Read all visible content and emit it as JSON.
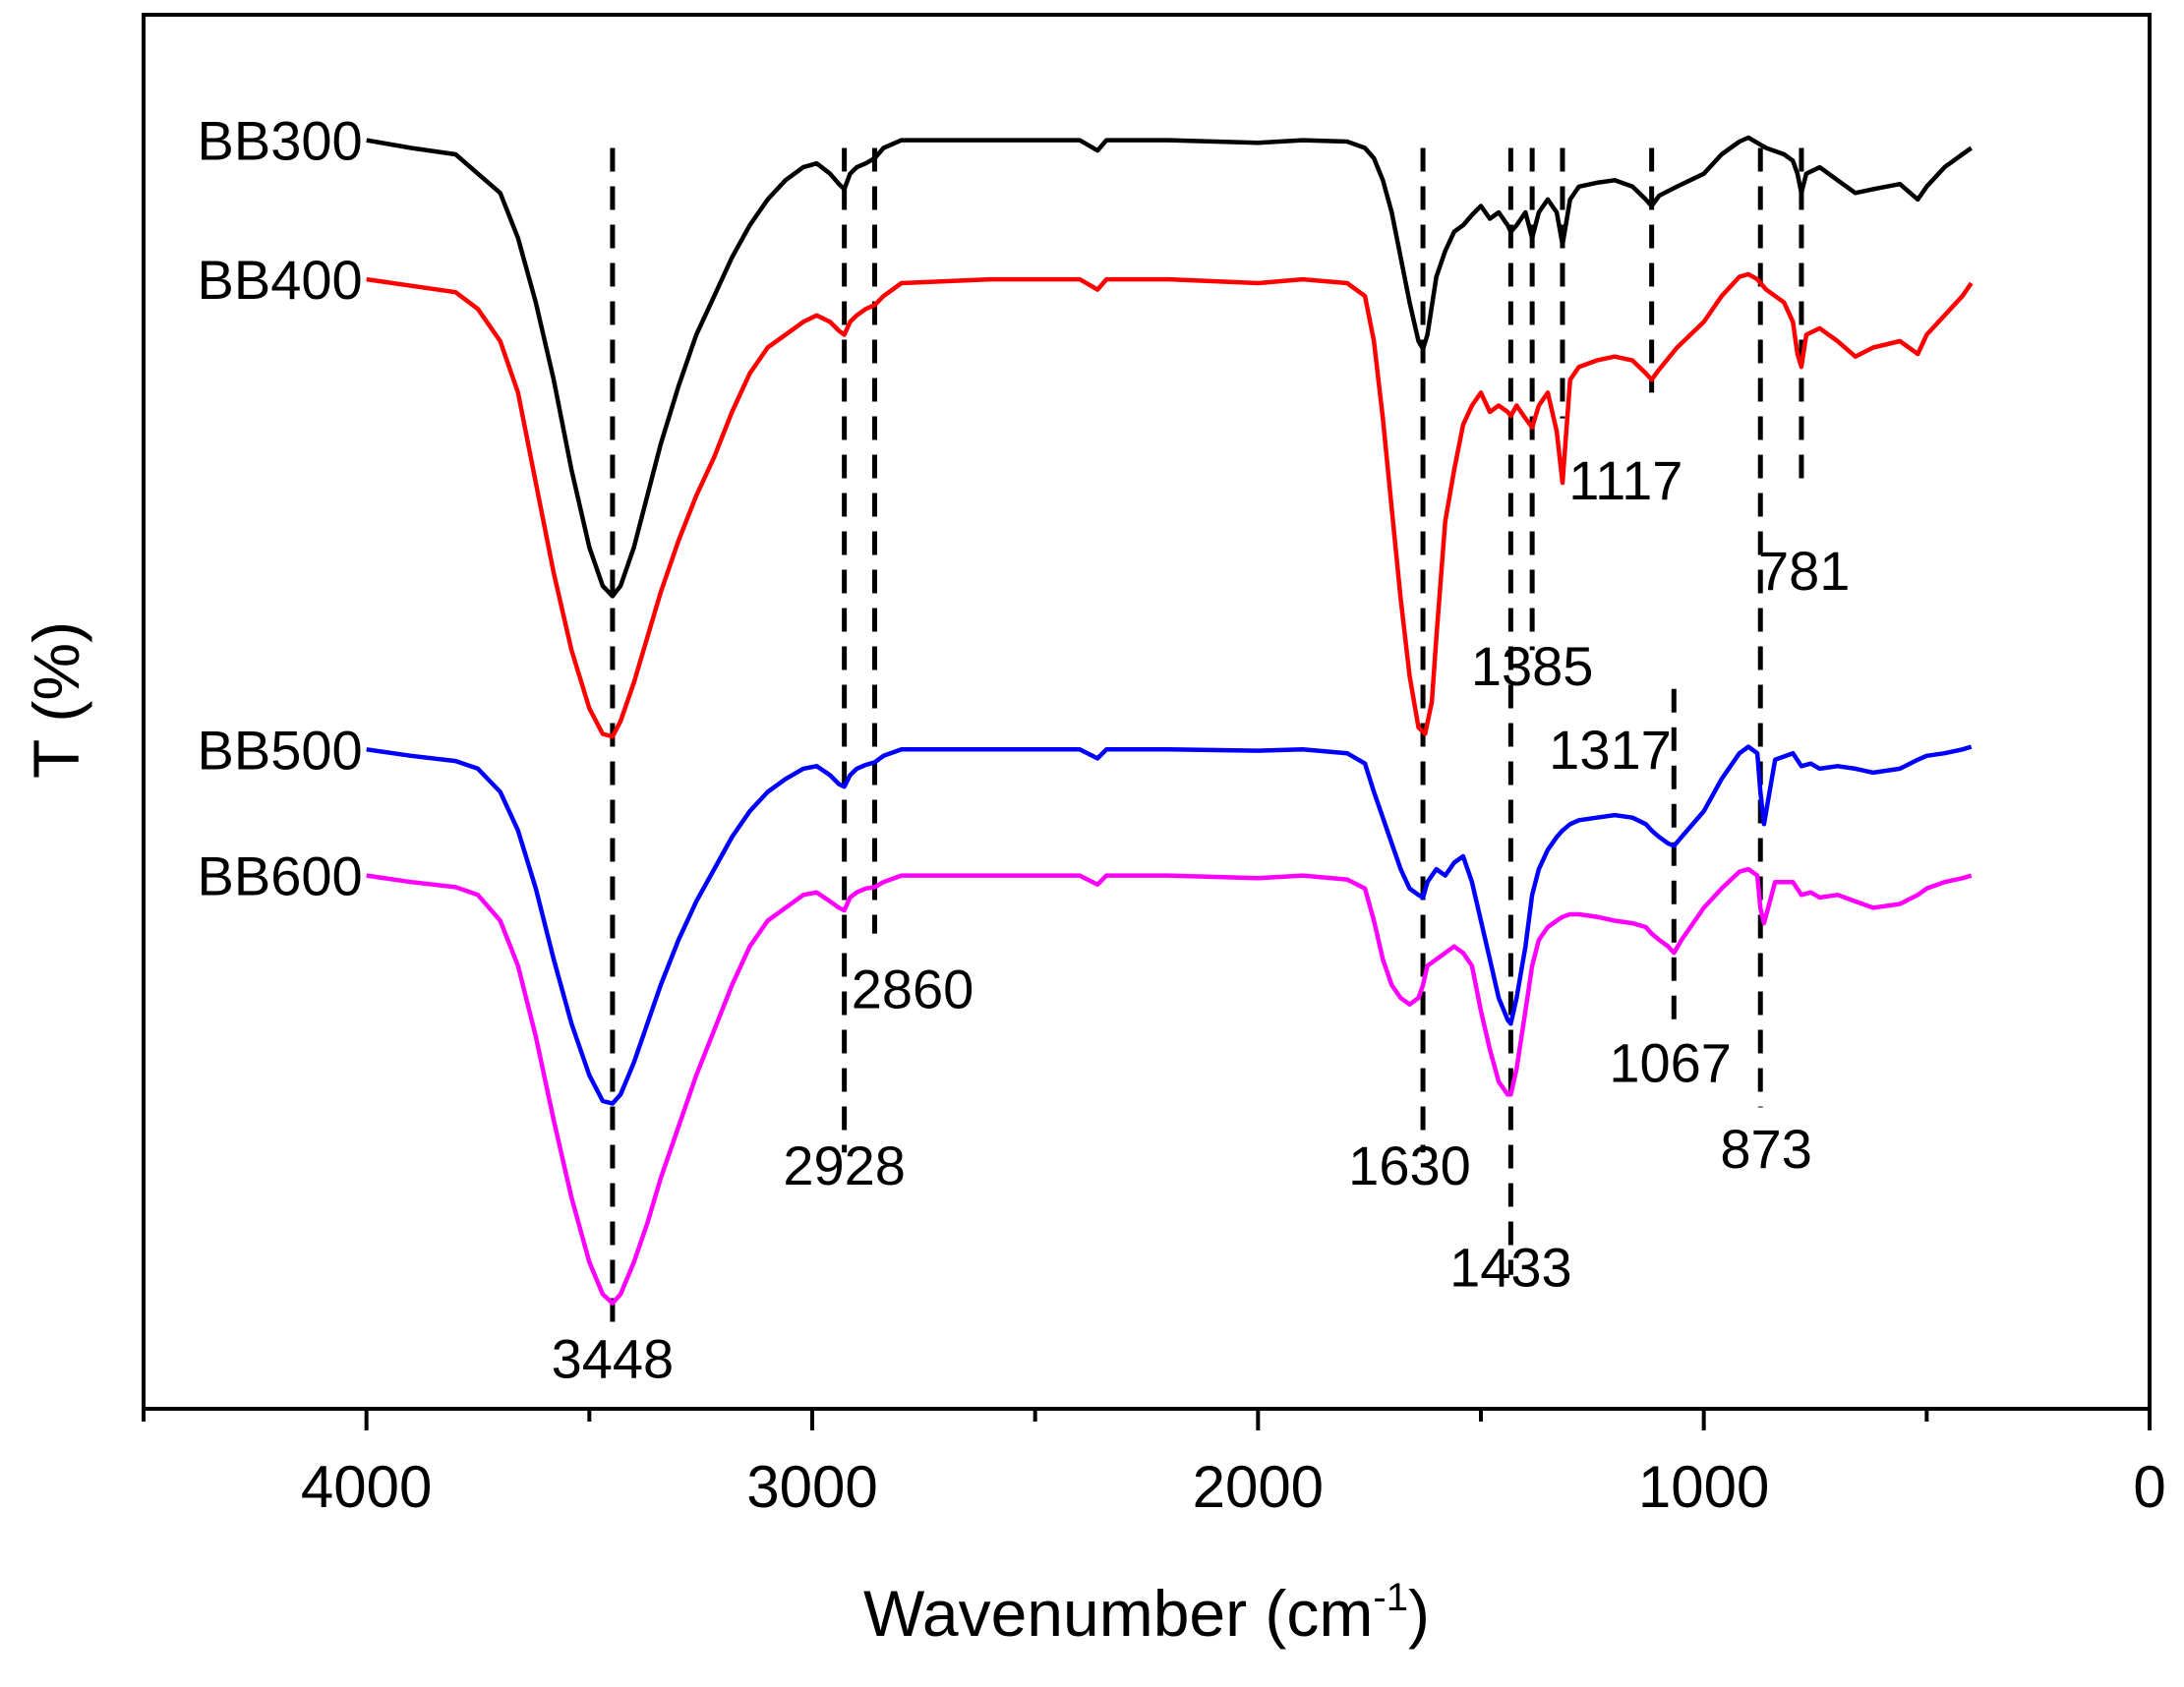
{
  "chart_data": {
    "type": "line",
    "title": "",
    "xlabel_main": "Wavenumber (cm",
    "xlabel_sup": "-1",
    "xlabel_close": ")",
    "ylabel": "T (%)",
    "xlim": [
      4500,
      0
    ],
    "xticks": [
      4000,
      3000,
      2000,
      1000,
      0
    ],
    "xtick_labels": [
      "4000",
      "3000",
      "2000",
      "1000",
      "0"
    ],
    "minor_ticks": [
      4500,
      3500,
      2500,
      1500,
      500
    ],
    "yaxis_ticks": false,
    "ylim": [
      0,
      100
    ],
    "series": [
      {
        "name": "BB300",
        "color": "#000000",
        "x": [
          4000,
          3900,
          3800,
          3750,
          3700,
          3660,
          3620,
          3580,
          3540,
          3500,
          3470,
          3448,
          3430,
          3400,
          3370,
          3340,
          3300,
          3260,
          3220,
          3180,
          3140,
          3100,
          3060,
          3020,
          2990,
          2960,
          2940,
          2928,
          2915,
          2900,
          2880,
          2860,
          2840,
          2800,
          2600,
          2400,
          2360,
          2340,
          2200,
          2000,
          1900,
          1800,
          1760,
          1740,
          1720,
          1700,
          1680,
          1660,
          1640,
          1630,
          1620,
          1600,
          1580,
          1560,
          1540,
          1520,
          1500,
          1480,
          1460,
          1440,
          1433,
          1420,
          1400,
          1385,
          1370,
          1350,
          1330,
          1317,
          1300,
          1280,
          1240,
          1200,
          1160,
          1130,
          1117,
          1100,
          1060,
          1000,
          960,
          920,
          900,
          880,
          860,
          820,
          800,
          790,
          781,
          770,
          740,
          700,
          660,
          620,
          560,
          520,
          500,
          460,
          420,
          400
        ],
        "y": [
          95.6,
          95.0,
          94.5,
          93.0,
          91.5,
          88.0,
          83.0,
          77.0,
          70.0,
          64.0,
          61.0,
          60.2,
          61.0,
          64.0,
          68.0,
          72.0,
          76.5,
          80.5,
          83.5,
          86.5,
          89.0,
          91.0,
          92.5,
          93.5,
          93.8,
          93.0,
          92.2,
          91.8,
          93.0,
          93.5,
          93.8,
          94.2,
          95.0,
          95.6,
          95.6,
          95.6,
          94.8,
          95.6,
          95.6,
          95.4,
          95.6,
          95.5,
          95.0,
          94.2,
          92.5,
          90.0,
          86.5,
          83.0,
          80.0,
          79.4,
          80.5,
          85.0,
          87.0,
          88.5,
          89.0,
          89.8,
          90.5,
          89.5,
          90.0,
          89.0,
          88.5,
          89.0,
          90.0,
          88.0,
          90.0,
          91.0,
          90.0,
          87.5,
          91.0,
          92.0,
          92.3,
          92.5,
          92.0,
          91.0,
          90.5,
          91.3,
          92.0,
          93.0,
          94.5,
          95.5,
          95.8,
          95.4,
          95.0,
          94.5,
          94.0,
          93.0,
          91.5,
          93.0,
          93.5,
          92.5,
          91.5,
          91.8,
          92.2,
          91.0,
          92.0,
          93.5,
          94.5,
          95.0
        ]
      },
      {
        "name": "BB400",
        "color": "#ff0000",
        "x": [
          4000,
          3900,
          3800,
          3750,
          3700,
          3660,
          3620,
          3580,
          3540,
          3500,
          3470,
          3448,
          3430,
          3400,
          3370,
          3340,
          3300,
          3260,
          3220,
          3180,
          3140,
          3100,
          3060,
          3020,
          2990,
          2960,
          2940,
          2928,
          2915,
          2900,
          2880,
          2860,
          2840,
          2800,
          2600,
          2400,
          2360,
          2340,
          2200,
          2000,
          1900,
          1800,
          1760,
          1740,
          1720,
          1700,
          1680,
          1660,
          1640,
          1625,
          1610,
          1600,
          1580,
          1560,
          1540,
          1520,
          1500,
          1480,
          1460,
          1440,
          1433,
          1420,
          1400,
          1385,
          1370,
          1350,
          1330,
          1317,
          1300,
          1280,
          1240,
          1200,
          1160,
          1130,
          1117,
          1100,
          1060,
          1000,
          960,
          920,
          900,
          880,
          860,
          820,
          800,
          790,
          781,
          770,
          740,
          700,
          660,
          620,
          560,
          520,
          500,
          460,
          420,
          400
        ],
        "y": [
          84.8,
          84.3,
          83.8,
          82.5,
          80.0,
          76.0,
          69.0,
          62.0,
          56.0,
          51.5,
          49.5,
          49.3,
          50.5,
          53.5,
          57.0,
          60.5,
          64.5,
          68.0,
          71.0,
          74.5,
          77.5,
          79.5,
          80.5,
          81.5,
          82.0,
          81.5,
          80.8,
          80.5,
          81.5,
          82.0,
          82.5,
          82.8,
          83.5,
          84.5,
          84.8,
          84.8,
          84.0,
          84.8,
          84.8,
          84.5,
          84.8,
          84.5,
          83.5,
          80.0,
          74.0,
          67.0,
          60.0,
          54.0,
          50.0,
          49.5,
          52.0,
          57.0,
          66.0,
          70.0,
          73.5,
          75.0,
          76.0,
          74.5,
          75.0,
          74.5,
          74.2,
          75.0,
          74.0,
          73.3,
          75.0,
          76.0,
          73.0,
          69.0,
          77.0,
          78.0,
          78.5,
          78.8,
          78.5,
          77.5,
          77.0,
          77.8,
          79.5,
          81.5,
          83.5,
          85.0,
          85.2,
          84.8,
          84.0,
          83.0,
          81.5,
          79.0,
          78.0,
          80.5,
          81.0,
          80.0,
          78.8,
          79.5,
          80.0,
          79.0,
          80.5,
          82.0,
          83.5,
          84.5
        ]
      },
      {
        "name": "BB500",
        "color": "#0000ff",
        "x": [
          4000,
          3900,
          3800,
          3750,
          3700,
          3660,
          3620,
          3580,
          3540,
          3500,
          3470,
          3448,
          3430,
          3400,
          3370,
          3340,
          3300,
          3260,
          3220,
          3180,
          3140,
          3100,
          3060,
          3020,
          2990,
          2960,
          2940,
          2928,
          2915,
          2900,
          2880,
          2860,
          2840,
          2800,
          2600,
          2400,
          2360,
          2340,
          2200,
          2000,
          1900,
          1800,
          1760,
          1740,
          1720,
          1700,
          1680,
          1660,
          1640,
          1630,
          1620,
          1600,
          1580,
          1560,
          1540,
          1520,
          1500,
          1480,
          1460,
          1440,
          1433,
          1420,
          1400,
          1385,
          1370,
          1350,
          1330,
          1317,
          1300,
          1280,
          1240,
          1200,
          1160,
          1130,
          1117,
          1100,
          1080,
          1067,
          1050,
          1000,
          960,
          920,
          900,
          880,
          873,
          865,
          840,
          800,
          781,
          760,
          740,
          700,
          660,
          620,
          560,
          520,
          500,
          460,
          420,
          400
        ],
        "y": [
          48.3,
          47.8,
          47.4,
          46.8,
          45.0,
          42.0,
          37.5,
          32.0,
          27.0,
          23.0,
          21.0,
          20.8,
          21.5,
          24.0,
          27.0,
          30.0,
          33.5,
          36.5,
          39.0,
          41.5,
          43.5,
          45.0,
          46.0,
          46.8,
          47.0,
          46.3,
          45.6,
          45.4,
          46.3,
          46.8,
          47.1,
          47.3,
          47.8,
          48.3,
          48.3,
          48.3,
          47.6,
          48.3,
          48.3,
          48.2,
          48.3,
          48.0,
          47.2,
          45.0,
          43.0,
          41.0,
          39.0,
          37.5,
          37.0,
          36.8,
          38.0,
          39.0,
          38.5,
          39.5,
          40.0,
          38.0,
          35.0,
          32.0,
          29.0,
          27.3,
          27.0,
          29.0,
          33.0,
          37.0,
          39.0,
          40.5,
          41.5,
          42.0,
          42.5,
          42.8,
          43.0,
          43.2,
          43.0,
          42.5,
          42.0,
          41.5,
          41.0,
          40.8,
          41.5,
          43.5,
          46.0,
          48.0,
          48.5,
          48.0,
          45.0,
          42.5,
          47.5,
          48.0,
          47.0,
          47.2,
          46.8,
          47.0,
          46.8,
          46.5,
          46.8,
          47.5,
          47.8,
          48.0,
          48.3,
          48.5
        ]
      },
      {
        "name": "BB600",
        "color": "#ff00ff",
        "x": [
          4000,
          3900,
          3800,
          3750,
          3700,
          3660,
          3620,
          3580,
          3540,
          3500,
          3470,
          3448,
          3430,
          3400,
          3370,
          3340,
          3300,
          3260,
          3220,
          3180,
          3140,
          3100,
          3060,
          3020,
          2990,
          2960,
          2940,
          2928,
          2915,
          2900,
          2880,
          2860,
          2840,
          2800,
          2600,
          2400,
          2360,
          2340,
          2200,
          2000,
          1900,
          1800,
          1760,
          1740,
          1720,
          1700,
          1680,
          1660,
          1640,
          1630,
          1620,
          1600,
          1580,
          1560,
          1540,
          1520,
          1500,
          1480,
          1460,
          1440,
          1433,
          1420,
          1400,
          1385,
          1370,
          1350,
          1330,
          1317,
          1300,
          1280,
          1240,
          1200,
          1160,
          1130,
          1117,
          1100,
          1080,
          1067,
          1050,
          1000,
          960,
          920,
          900,
          880,
          873,
          865,
          840,
          800,
          781,
          760,
          740,
          700,
          660,
          620,
          560,
          520,
          500,
          460,
          420,
          400
        ],
        "y": [
          38.5,
          38.0,
          37.6,
          37.0,
          35.0,
          31.5,
          26.0,
          19.5,
          13.5,
          8.5,
          6.0,
          5.3,
          6.0,
          8.5,
          11.5,
          15.0,
          19.0,
          23.0,
          26.5,
          30.0,
          33.0,
          35.0,
          36.0,
          37.0,
          37.2,
          36.5,
          36.0,
          35.8,
          36.8,
          37.2,
          37.5,
          37.6,
          38.0,
          38.5,
          38.5,
          38.5,
          37.8,
          38.5,
          38.5,
          38.3,
          38.5,
          38.2,
          37.5,
          35.0,
          32.0,
          30.0,
          29.0,
          28.5,
          29.0,
          30.0,
          31.5,
          32.0,
          32.5,
          33.0,
          32.5,
          31.5,
          28.0,
          25.0,
          22.5,
          21.5,
          21.5,
          23.5,
          28.0,
          31.5,
          33.5,
          34.5,
          35.0,
          35.3,
          35.5,
          35.5,
          35.3,
          35.0,
          34.8,
          34.5,
          34.0,
          33.5,
          33.0,
          32.5,
          33.5,
          36.0,
          37.5,
          38.8,
          39.0,
          38.5,
          36.0,
          34.8,
          38.0,
          38.0,
          37.0,
          37.2,
          36.8,
          37.0,
          36.5,
          36.0,
          36.3,
          37.0,
          37.5,
          38.0,
          38.3,
          38.5
        ]
      }
    ],
    "reference_lines": [
      {
        "x": 3448,
        "y_top": 95.0,
        "y_bottom": 3.5,
        "label": "3448",
        "label_x": 3448,
        "label_y": -0.5
      },
      {
        "x": 2928,
        "y_top": 95.0,
        "y_bottom": 17.0,
        "label": "2928",
        "label_x": 2928,
        "label_y": 14.5
      },
      {
        "x": 2860,
        "y_top": 95.0,
        "y_bottom": 34.0,
        "label": "2860",
        "label_x": 2775,
        "label_y": 28.2
      },
      {
        "x": 1630,
        "y_top": 95.0,
        "y_bottom": 17.0,
        "label": "1630",
        "label_x": 1660,
        "label_y": 14.5
      },
      {
        "x": 1433,
        "y_top": 95.0,
        "y_bottom": 7.5,
        "label": "1433",
        "label_x": 1433,
        "label_y": 6.6
      },
      {
        "x": 1385,
        "y_top": 95.0,
        "y_bottom": 56.0,
        "label": "1385",
        "label_x": 1385,
        "label_y": 53.3
      },
      {
        "x": 1317,
        "y_top": 95.0,
        "y_bottom": 74.0,
        "label": "1317",
        "label_x": 1210,
        "label_y": 46.8
      },
      {
        "x": 1117,
        "y_top": 95.0,
        "y_bottom": 76.0,
        "label": "1117",
        "label_x": 1175,
        "label_y": 67.7
      },
      {
        "x": 1067,
        "y_top": 53.0,
        "y_bottom": 27.0,
        "label": "1067",
        "label_x": 1075,
        "label_y": 22.5
      },
      {
        "x": 873,
        "y_top": 95.0,
        "y_bottom": 20.5,
        "label": "873",
        "label_x": 860,
        "label_y": 15.8
      },
      {
        "x": 781,
        "y_top": 95.0,
        "y_bottom": 69.0,
        "label": "781",
        "label_x": 775,
        "label_y": 60.7
      }
    ]
  }
}
